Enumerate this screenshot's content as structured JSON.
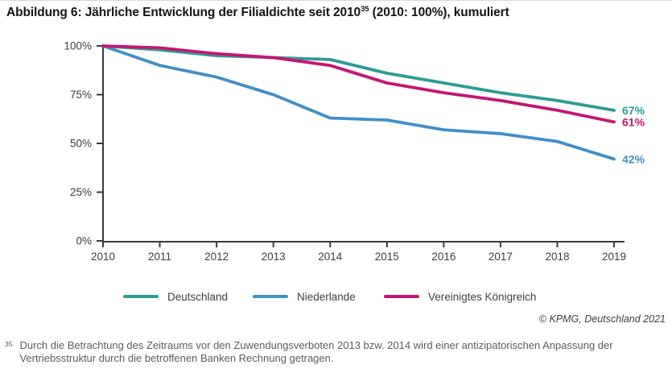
{
  "page": {
    "title_prefix": "Abbildung 6: Jährliche Entwicklung der Filialdichte seit 2010",
    "title_sup": "35",
    "title_suffix": " (2010: 100%), kumuliert",
    "copyright": "© KPMG, Deutschland 2021",
    "footnote_marker": "35",
    "footnote_text": "Durch die Betrachtung des Zeitraums vor den Zuwendungsverboten 2013 bzw. 2014 wird einer antizipatorischen Anpassung der Vertriebsstruktur durch die betroffenen Banken Rechnung getragen."
  },
  "chart_data": {
    "type": "line",
    "title": "Abbildung 6: Jährliche Entwicklung der Filialdichte seit 2010 (2010: 100%), kumuliert",
    "x": [
      2010,
      2011,
      2012,
      2013,
      2014,
      2015,
      2016,
      2017,
      2018,
      2019
    ],
    "xlabel": "",
    "ylabel": "",
    "ylim": [
      0,
      100
    ],
    "y_ticks": [
      "100%",
      "75%",
      "50%",
      "25%",
      "0%"
    ],
    "grid": false,
    "legend_position": "bottom",
    "series": [
      {
        "name": "Deutschland",
        "color": "#2C9C94",
        "values": [
          100,
          98,
          95,
          94,
          93,
          86,
          81,
          76,
          72,
          67
        ],
        "end_label": "67%"
      },
      {
        "name": "Niederlande",
        "color": "#418FC8",
        "values": [
          100,
          90,
          84,
          75,
          63,
          62,
          57,
          55,
          51,
          42
        ],
        "end_label": "42%"
      },
      {
        "name": "Vereinigtes Königreich",
        "color": "#C51674",
        "values": [
          100,
          99,
          96,
          94,
          90,
          81,
          76,
          72,
          67,
          61
        ],
        "end_label": "61%"
      }
    ]
  }
}
